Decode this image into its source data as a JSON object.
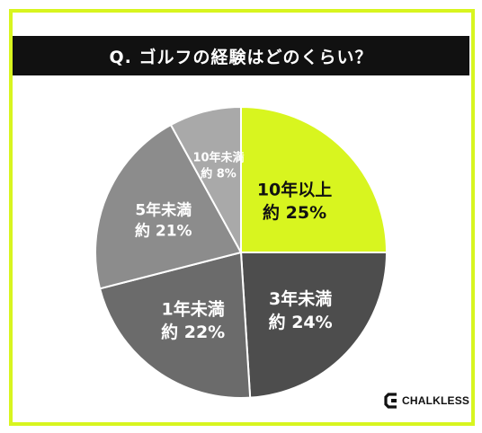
{
  "title": "Q. ゴルフの経験はどのくらい？",
  "chart_data": {
    "type": "pie",
    "categories": [
      "10年以上",
      "3年未満",
      "1年未満",
      "5年未満",
      "10年未満"
    ],
    "values": [
      25,
      24,
      22,
      21,
      8
    ],
    "value_labels": [
      "約 25%",
      "約 24%",
      "約 22%",
      "約 21%",
      "約 8%"
    ],
    "colors": [
      "#d8f51f",
      "#4d4d4d",
      "#6b6b6b",
      "#8c8c8c",
      "#a9a9a9"
    ],
    "label_colors": [
      "#111111",
      "#ffffff",
      "#ffffff",
      "#ffffff",
      "#ffffff"
    ]
  },
  "logo": {
    "text": "CHALKLESS"
  }
}
